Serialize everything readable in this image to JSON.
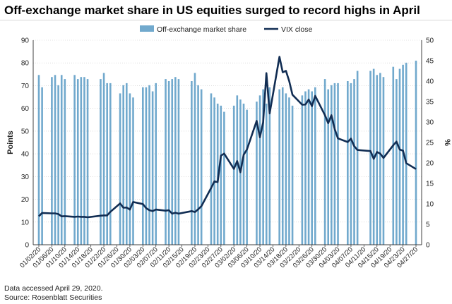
{
  "chart_data": {
    "type": "bar+line",
    "title": "Off-exchange market share in US equities surged to record highs in April",
    "ylabel_left": "Points",
    "ylabel_right": "%",
    "left_axis": {
      "min": 0,
      "max": 90,
      "step": 10,
      "ticks": [
        "0",
        "10",
        "20",
        "30",
        "40",
        "50",
        "60",
        "70",
        "80",
        "90"
      ]
    },
    "right_axis": {
      "min": 0,
      "max": 50,
      "step": 5,
      "ticks": [
        "0",
        "5",
        "10",
        "15",
        "20",
        "25",
        "30",
        "35",
        "40",
        "45",
        "50"
      ]
    },
    "legend": {
      "placement": "top-center",
      "bar_label": "Off-exchange market share",
      "line_label": "VIX close"
    },
    "colors": {
      "bar": "#71a9cd",
      "line": "#112d53",
      "axis": "#404040",
      "grid": "#c8c8c8"
    },
    "x_labels": [
      "01/02/20",
      "01/06/20",
      "01/10/20",
      "01/14/20",
      "01/18/20",
      "01/22/20",
      "01/26/20",
      "01/30/20",
      "02/03/20",
      "02/07/20",
      "02/11/20",
      "02/15/20",
      "02/19/20",
      "02/23/20",
      "02/27/20",
      "03/02/20",
      "03/06/20",
      "03/10/20",
      "03/14/20",
      "03/18/20",
      "03/22/20",
      "03/26/20",
      "03/30/20",
      "04/03/20",
      "04/07/20",
      "04/11/20",
      "04/15/20",
      "04/19/20",
      "04/23/20",
      "04/27/20"
    ],
    "x_range": [
      "01/02/20",
      "04/27/20"
    ],
    "bars": {
      "name": "Off-exchange market share",
      "unit": "%",
      "points": [
        [
          "01/02/20",
          41.5
        ],
        [
          "01/03/20",
          38.5
        ],
        [
          "01/06/20",
          41
        ],
        [
          "01/07/20",
          41.5
        ],
        [
          "01/08/20",
          39
        ],
        [
          "01/09/20",
          41.5
        ],
        [
          "01/10/20",
          40.5
        ],
        [
          "01/13/20",
          41.5
        ],
        [
          "01/14/20",
          40.5
        ],
        [
          "01/15/20",
          41
        ],
        [
          "01/16/20",
          41
        ],
        [
          "01/17/20",
          40.5
        ],
        [
          "01/21/20",
          40.5
        ],
        [
          "01/22/20",
          42
        ],
        [
          "01/23/20",
          39.5
        ],
        [
          "01/24/20",
          39.5
        ],
        [
          "01/27/20",
          37
        ],
        [
          "01/28/20",
          39
        ],
        [
          "01/29/20",
          39.5
        ],
        [
          "01/30/20",
          37
        ],
        [
          "01/31/20",
          36
        ],
        [
          "02/03/20",
          38.5
        ],
        [
          "02/04/20",
          38.5
        ],
        [
          "02/05/20",
          39
        ],
        [
          "02/06/20",
          37.5
        ],
        [
          "02/07/20",
          39.5
        ],
        [
          "02/10/20",
          40.5
        ],
        [
          "02/11/20",
          40
        ],
        [
          "02/12/20",
          40.5
        ],
        [
          "02/13/20",
          41
        ],
        [
          "02/14/20",
          40.5
        ],
        [
          "02/18/20",
          40
        ],
        [
          "02/19/20",
          42
        ],
        [
          "02/20/20",
          39
        ],
        [
          "02/21/20",
          38
        ],
        [
          "02/24/20",
          37
        ],
        [
          "02/25/20",
          36
        ],
        [
          "02/26/20",
          34.5
        ],
        [
          "02/27/20",
          34
        ],
        [
          "02/28/20",
          32.5
        ],
        [
          "03/02/20",
          34
        ],
        [
          "03/03/20",
          36.5
        ],
        [
          "03/04/20",
          35.5
        ],
        [
          "03/05/20",
          34.5
        ],
        [
          "03/06/20",
          33
        ],
        [
          "03/09/20",
          35
        ],
        [
          "03/10/20",
          36.5
        ],
        [
          "03/11/20",
          38
        ],
        [
          "03/12/20",
          34.5
        ],
        [
          "03/13/20",
          38.5
        ],
        [
          "03/16/20",
          38
        ],
        [
          "03/17/20",
          38.5
        ],
        [
          "03/18/20",
          37
        ],
        [
          "03/19/20",
          36
        ],
        [
          "03/20/20",
          34
        ],
        [
          "03/23/20",
          36.5
        ],
        [
          "03/24/20",
          37.5
        ],
        [
          "03/25/20",
          38
        ],
        [
          "03/26/20",
          37.5
        ],
        [
          "03/27/20",
          38.5
        ],
        [
          "03/30/20",
          40.5
        ],
        [
          "03/31/20",
          38
        ],
        [
          "04/01/20",
          39
        ],
        [
          "04/02/20",
          39.5
        ],
        [
          "04/03/20",
          39.5
        ],
        [
          "04/06/20",
          40
        ],
        [
          "04/07/20",
          39.5
        ],
        [
          "04/08/20",
          40.5
        ],
        [
          "04/09/20",
          42.5
        ],
        [
          "04/13/20",
          42.5
        ],
        [
          "04/14/20",
          43
        ],
        [
          "04/15/20",
          41.5
        ],
        [
          "04/16/20",
          42
        ],
        [
          "04/17/20",
          41
        ],
        [
          "04/20/20",
          43.5
        ],
        [
          "04/21/20",
          40.5
        ],
        [
          "04/22/20",
          43
        ],
        [
          "04/23/20",
          44
        ],
        [
          "04/24/20",
          44.5
        ],
        [
          "04/27/20",
          45
        ]
      ]
    },
    "line": {
      "name": "VIX close",
      "unit": "points",
      "points": [
        [
          "01/02/20",
          12.5
        ],
        [
          "01/03/20",
          14
        ],
        [
          "01/06/20",
          13.8
        ],
        [
          "01/07/20",
          13.8
        ],
        [
          "01/08/20",
          13.5
        ],
        [
          "01/09/20",
          12.5
        ],
        [
          "01/10/20",
          12.6
        ],
        [
          "01/13/20",
          12.3
        ],
        [
          "01/14/20",
          12.4
        ],
        [
          "01/15/20",
          12.3
        ],
        [
          "01/16/20",
          12.3
        ],
        [
          "01/17/20",
          12.1
        ],
        [
          "01/21/20",
          12.8
        ],
        [
          "01/22/20",
          12.9
        ],
        [
          "01/23/20",
          12.9
        ],
        [
          "01/24/20",
          14.5
        ],
        [
          "01/27/20",
          18.2
        ],
        [
          "01/28/20",
          16.3
        ],
        [
          "01/29/20",
          16.4
        ],
        [
          "01/30/20",
          15.5
        ],
        [
          "01/31/20",
          18.8
        ],
        [
          "02/03/20",
          17.9
        ],
        [
          "02/04/20",
          16.1
        ],
        [
          "02/05/20",
          15.2
        ],
        [
          "02/06/20",
          14.8
        ],
        [
          "02/07/20",
          15.5
        ],
        [
          "02/10/20",
          15
        ],
        [
          "02/11/20",
          15.2
        ],
        [
          "02/12/20",
          13.7
        ],
        [
          "02/13/20",
          14.1
        ],
        [
          "02/14/20",
          13.7
        ],
        [
          "02/18/20",
          14.8
        ],
        [
          "02/19/20",
          14.4
        ],
        [
          "02/20/20",
          15.6
        ],
        [
          "02/21/20",
          17
        ],
        [
          "02/24/20",
          25
        ],
        [
          "02/25/20",
          27.9
        ],
        [
          "02/26/20",
          27.6
        ],
        [
          "02/27/20",
          39.2
        ],
        [
          "02/28/20",
          40.1
        ],
        [
          "03/02/20",
          33.4
        ],
        [
          "03/03/20",
          36.8
        ],
        [
          "03/04/20",
          31.9
        ],
        [
          "03/05/20",
          39.6
        ],
        [
          "03/06/20",
          41.9
        ],
        [
          "03/09/20",
          54.5
        ],
        [
          "03/10/20",
          47.3
        ],
        [
          "03/11/20",
          53.9
        ],
        [
          "03/12/20",
          75.5
        ],
        [
          "03/13/20",
          57.8
        ],
        [
          "03/16/20",
          82.7
        ],
        [
          "03/17/20",
          75.9
        ],
        [
          "03/18/20",
          76.5
        ],
        [
          "03/19/20",
          72
        ],
        [
          "03/20/20",
          66
        ],
        [
          "03/23/20",
          61.6
        ],
        [
          "03/24/20",
          61.7
        ],
        [
          "03/25/20",
          63.9
        ],
        [
          "03/26/20",
          61
        ],
        [
          "03/27/20",
          65.5
        ],
        [
          "03/30/20",
          57
        ],
        [
          "03/31/20",
          53.5
        ],
        [
          "04/01/20",
          57
        ],
        [
          "04/02/20",
          50.9
        ],
        [
          "04/03/20",
          46.8
        ],
        [
          "04/06/20",
          45.2
        ],
        [
          "04/07/20",
          46.7
        ],
        [
          "04/08/20",
          43.4
        ],
        [
          "04/09/20",
          41.7
        ],
        [
          "04/13/20",
          41.2
        ],
        [
          "04/14/20",
          37.8
        ],
        [
          "04/15/20",
          40.8
        ],
        [
          "04/16/20",
          40.1
        ],
        [
          "04/17/20",
          38.2
        ],
        [
          "04/20/20",
          43.8
        ],
        [
          "04/21/20",
          45.4
        ],
        [
          "04/22/20",
          41.9
        ],
        [
          "04/23/20",
          41.4
        ],
        [
          "04/24/20",
          35.9
        ],
        [
          "04/27/20",
          33.3
        ]
      ]
    },
    "notes": [
      "Data accessed April 29, 2020.",
      "Source: Rosenblatt Securities"
    ]
  }
}
